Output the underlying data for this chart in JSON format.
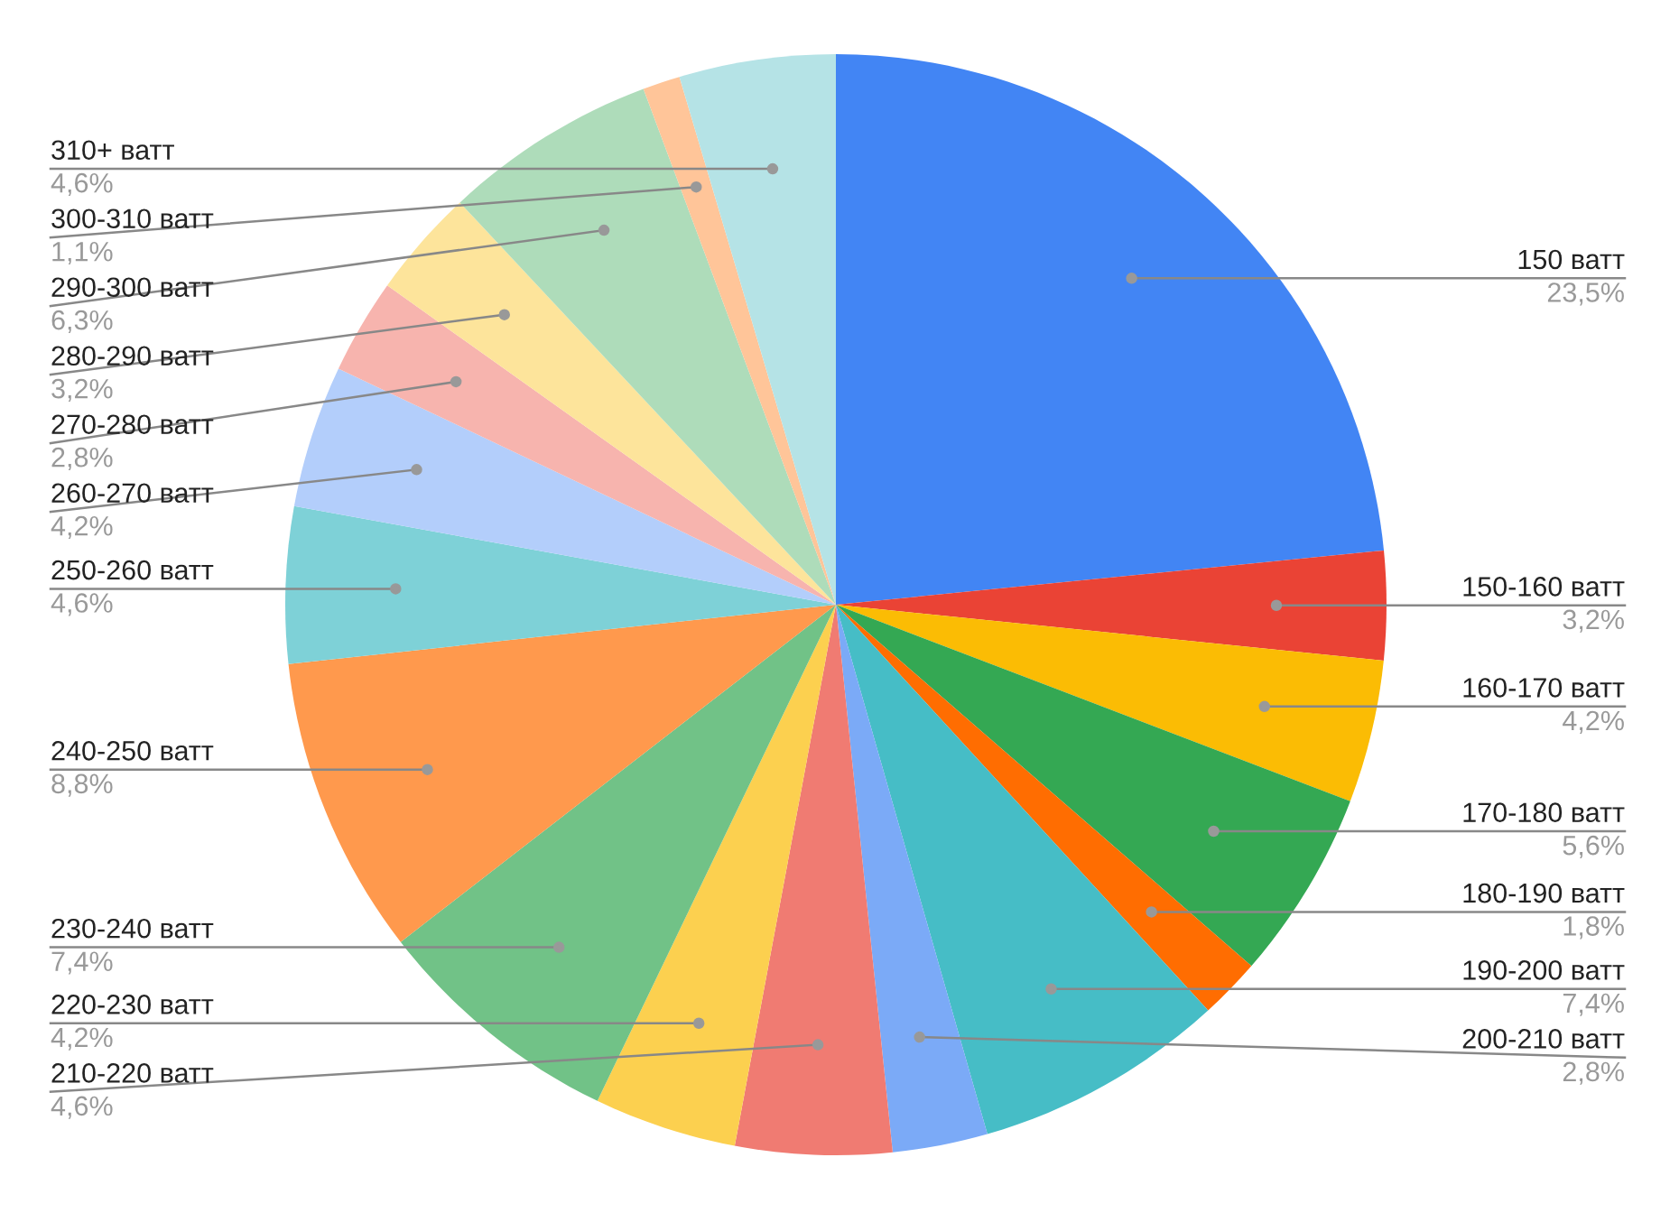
{
  "chart_data": {
    "type": "pie",
    "categories": [
      "150 ватт",
      "150-160 ватт",
      "160-170 ватт",
      "170-180 ватт",
      "180-190 ватт",
      "190-200 ватт",
      "200-210 ватт",
      "210-220 ватт",
      "220-230 ватт",
      "230-240 ватт",
      "240-250 ватт",
      "250-260 ватт",
      "260-270 ватт",
      "270-280 ватт",
      "280-290 ватт",
      "290-300 ватт",
      "300-310 ватт",
      "310+ ватт"
    ],
    "values": [
      23.5,
      3.2,
      4.2,
      5.6,
      1.8,
      7.4,
      2.8,
      4.6,
      4.2,
      7.4,
      8.8,
      4.6,
      4.2,
      2.8,
      3.2,
      6.3,
      1.1,
      4.6
    ],
    "value_labels": [
      "23,5%",
      "3,2%",
      "4,2%",
      "5,6%",
      "1,8%",
      "7,4%",
      "2,8%",
      "4,6%",
      "4,2%",
      "7,4%",
      "8,8%",
      "4,6%",
      "4,2%",
      "2,8%",
      "3,2%",
      "6,3%",
      "1,1%",
      "4,6%"
    ],
    "colors": [
      "#4285f4",
      "#ea4335",
      "#fbbc04",
      "#34a853",
      "#ff6d01",
      "#46bdc6",
      "#7baaf7",
      "#f07b72",
      "#fcd04f",
      "#71c287",
      "#ff994d",
      "#7ed1d7",
      "#b3cefb",
      "#f7b4ae",
      "#fde49b",
      "#aedcba",
      "#ffc599",
      "#b5e3e6"
    ]
  }
}
